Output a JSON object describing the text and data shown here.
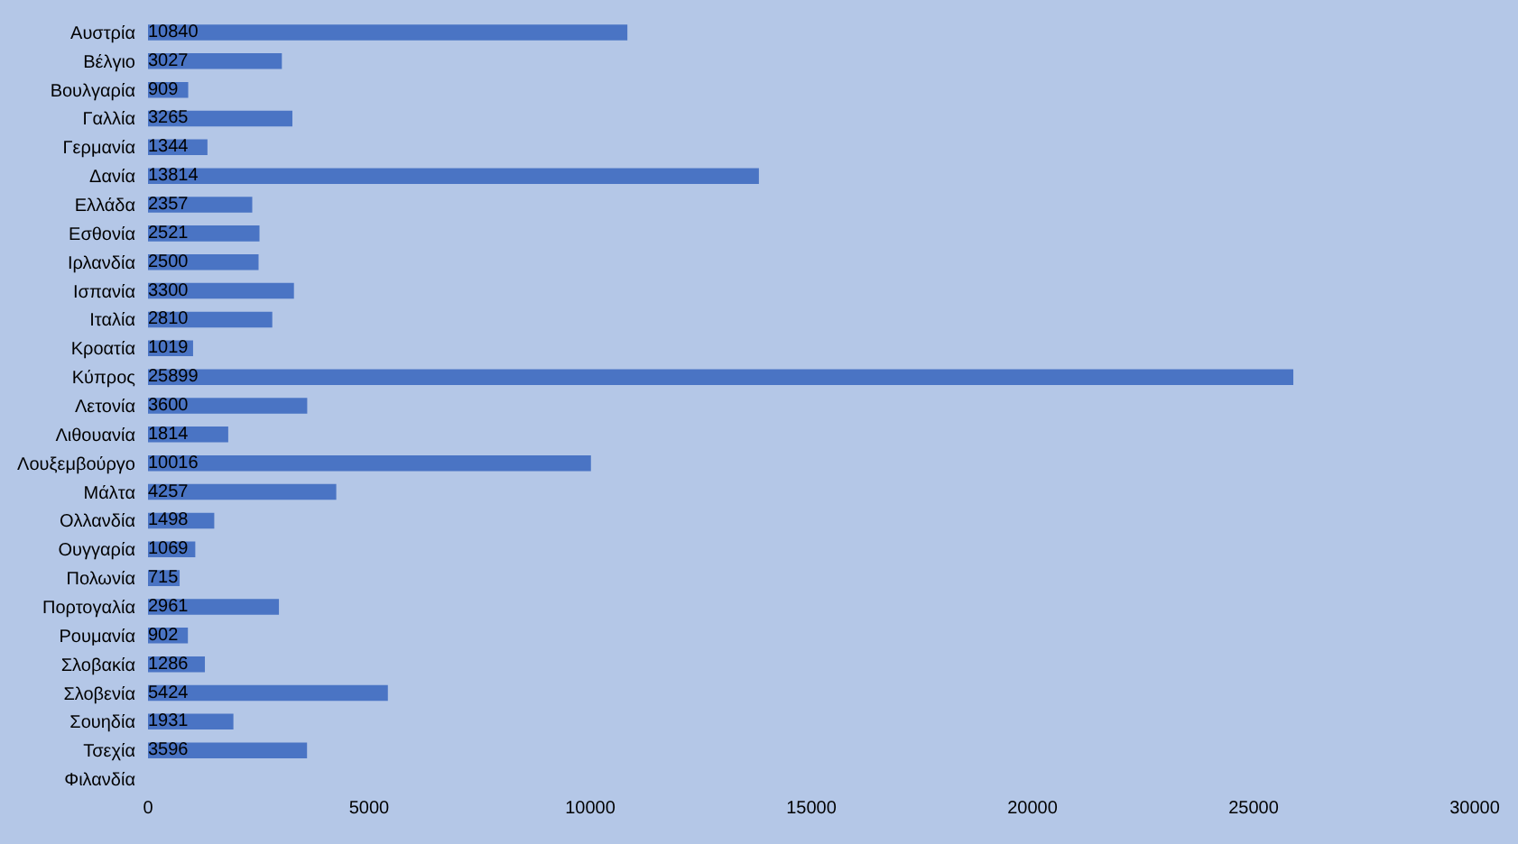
{
  "chart_data": {
    "type": "bar",
    "orientation": "horizontal",
    "categories": [
      "Αυστρία",
      "Βέλγιο",
      "Βουλγαρία",
      "Γαλλία",
      "Γερμανία",
      "Δανία",
      "Ελλάδα",
      "Εσθονία",
      "Ιρλανδία",
      "Ισπανία",
      "Ιταλία",
      "Κροατία",
      "Κύπρος",
      "Λετονία",
      "Λιθουανία",
      "Λουξεμβούργο",
      "Μάλτα",
      "Ολλανδία",
      "Ουγγαρία",
      "Πολωνία",
      "Πορτογαλία",
      "Ρουμανία",
      "Σλοβακία",
      "Σλοβενία",
      "Σουηδία",
      "Τσεχία",
      "Φιλανδία"
    ],
    "values": [
      10840,
      3027,
      909,
      3265,
      1344,
      13814,
      2357,
      2521,
      2500,
      3300,
      2810,
      1019,
      25899,
      3600,
      1814,
      10016,
      4257,
      1498,
      1069,
      715,
      2961,
      902,
      1286,
      5424,
      1931,
      3596,
      null
    ],
    "color": "#4a74c4",
    "data_labels": true,
    "xlim": [
      0,
      30000
    ],
    "xticks": [
      0,
      5000,
      10000,
      15000,
      20000,
      25000,
      30000
    ]
  }
}
